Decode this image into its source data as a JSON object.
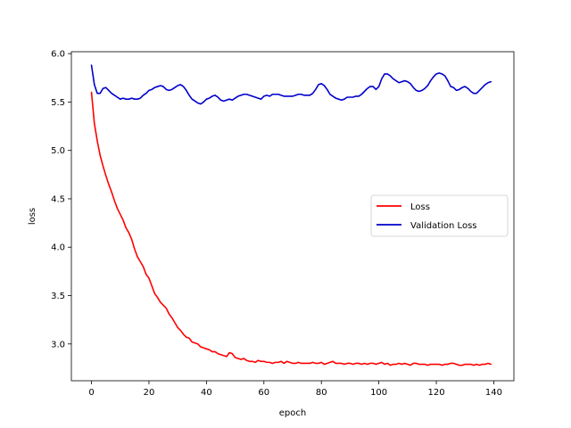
{
  "chart_data": {
    "type": "line",
    "title": "",
    "xlabel": "epoch",
    "ylabel": "loss",
    "xlim": [
      -7,
      147
    ],
    "ylim": [
      2.62,
      6.02
    ],
    "xticks": [
      0,
      20,
      40,
      60,
      80,
      100,
      120,
      140
    ],
    "yticks": [
      3.0,
      3.5,
      4.0,
      4.5,
      5.0,
      5.5,
      6.0
    ],
    "grid": false,
    "legend_position": "center-right",
    "series": [
      {
        "name": "Loss",
        "color": "#ff0000",
        "x": [
          0,
          1,
          2,
          3,
          4,
          5,
          6,
          7,
          8,
          9,
          10,
          11,
          12,
          13,
          14,
          15,
          16,
          17,
          18,
          19,
          20,
          21,
          22,
          23,
          24,
          25,
          26,
          27,
          28,
          29,
          30,
          31,
          32,
          33,
          34,
          35,
          36,
          37,
          38,
          39,
          40,
          41,
          42,
          43,
          44,
          45,
          46,
          47,
          48,
          49,
          50,
          51,
          52,
          53,
          54,
          55,
          56,
          57,
          58,
          59,
          60,
          61,
          62,
          63,
          64,
          65,
          66,
          67,
          68,
          69,
          70,
          71,
          72,
          73,
          74,
          75,
          76,
          77,
          78,
          79,
          80,
          81,
          82,
          83,
          84,
          85,
          86,
          87,
          88,
          89,
          90,
          91,
          92,
          93,
          94,
          95,
          96,
          97,
          98,
          99,
          100,
          101,
          102,
          103,
          104,
          105,
          106,
          107,
          108,
          109,
          110,
          111,
          112,
          113,
          114,
          115,
          116,
          117,
          118,
          119,
          120,
          121,
          122,
          123,
          124,
          125,
          126,
          127,
          128,
          129,
          130,
          131,
          132,
          133,
          134,
          135,
          136,
          137,
          138,
          139
        ],
        "values": [
          5.6,
          5.28,
          5.1,
          4.95,
          4.84,
          4.74,
          4.65,
          4.57,
          4.48,
          4.4,
          4.34,
          4.28,
          4.2,
          4.15,
          4.08,
          3.98,
          3.9,
          3.85,
          3.8,
          3.72,
          3.68,
          3.6,
          3.52,
          3.48,
          3.43,
          3.4,
          3.37,
          3.31,
          3.27,
          3.22,
          3.17,
          3.14,
          3.1,
          3.07,
          3.06,
          3.02,
          3.01,
          3.0,
          2.97,
          2.96,
          2.95,
          2.94,
          2.92,
          2.92,
          2.9,
          2.89,
          2.88,
          2.87,
          2.91,
          2.9,
          2.86,
          2.85,
          2.84,
          2.85,
          2.83,
          2.82,
          2.82,
          2.81,
          2.83,
          2.82,
          2.82,
          2.81,
          2.81,
          2.8,
          2.81,
          2.81,
          2.82,
          2.8,
          2.82,
          2.81,
          2.8,
          2.8,
          2.81,
          2.8,
          2.8,
          2.8,
          2.8,
          2.81,
          2.8,
          2.8,
          2.81,
          2.79,
          2.8,
          2.81,
          2.82,
          2.8,
          2.8,
          2.8,
          2.79,
          2.8,
          2.8,
          2.79,
          2.8,
          2.8,
          2.79,
          2.8,
          2.79,
          2.8,
          2.8,
          2.79,
          2.8,
          2.81,
          2.79,
          2.8,
          2.78,
          2.79,
          2.79,
          2.8,
          2.79,
          2.8,
          2.79,
          2.78,
          2.8,
          2.8,
          2.79,
          2.79,
          2.79,
          2.78,
          2.79,
          2.79,
          2.79,
          2.79,
          2.78,
          2.79,
          2.79,
          2.8,
          2.8,
          2.79,
          2.78,
          2.78,
          2.79,
          2.79,
          2.79,
          2.78,
          2.79,
          2.78,
          2.79,
          2.79,
          2.8,
          2.79
        ]
      },
      {
        "name": "Validation Loss",
        "color": "#0000cc",
        "x": [
          0,
          1,
          2,
          3,
          4,
          5,
          6,
          7,
          8,
          9,
          10,
          11,
          12,
          13,
          14,
          15,
          16,
          17,
          18,
          19,
          20,
          21,
          22,
          23,
          24,
          25,
          26,
          27,
          28,
          29,
          30,
          31,
          32,
          33,
          34,
          35,
          36,
          37,
          38,
          39,
          40,
          41,
          42,
          43,
          44,
          45,
          46,
          47,
          48,
          49,
          50,
          51,
          52,
          53,
          54,
          55,
          56,
          57,
          58,
          59,
          60,
          61,
          62,
          63,
          64,
          65,
          66,
          67,
          68,
          69,
          70,
          71,
          72,
          73,
          74,
          75,
          76,
          77,
          78,
          79,
          80,
          81,
          82,
          83,
          84,
          85,
          86,
          87,
          88,
          89,
          90,
          91,
          92,
          93,
          94,
          95,
          96,
          97,
          98,
          99,
          100,
          101,
          102,
          103,
          104,
          105,
          106,
          107,
          108,
          109,
          110,
          111,
          112,
          113,
          114,
          115,
          116,
          117,
          118,
          119,
          120,
          121,
          122,
          123,
          124,
          125,
          126,
          127,
          128,
          129,
          130,
          131,
          132,
          133,
          134,
          135,
          136,
          137,
          138,
          139
        ],
        "values": [
          5.88,
          5.68,
          5.59,
          5.59,
          5.64,
          5.65,
          5.62,
          5.59,
          5.57,
          5.55,
          5.53,
          5.54,
          5.53,
          5.53,
          5.54,
          5.53,
          5.53,
          5.54,
          5.57,
          5.59,
          5.62,
          5.63,
          5.65,
          5.66,
          5.67,
          5.66,
          5.63,
          5.62,
          5.63,
          5.65,
          5.67,
          5.68,
          5.66,
          5.62,
          5.57,
          5.53,
          5.51,
          5.49,
          5.48,
          5.5,
          5.53,
          5.54,
          5.56,
          5.57,
          5.55,
          5.52,
          5.51,
          5.52,
          5.53,
          5.52,
          5.54,
          5.56,
          5.57,
          5.58,
          5.58,
          5.57,
          5.56,
          5.55,
          5.54,
          5.53,
          5.56,
          5.57,
          5.56,
          5.58,
          5.58,
          5.58,
          5.57,
          5.56,
          5.56,
          5.56,
          5.56,
          5.57,
          5.58,
          5.58,
          5.57,
          5.57,
          5.57,
          5.59,
          5.63,
          5.68,
          5.69,
          5.67,
          5.63,
          5.58,
          5.56,
          5.54,
          5.53,
          5.52,
          5.53,
          5.55,
          5.55,
          5.55,
          5.56,
          5.56,
          5.58,
          5.61,
          5.64,
          5.66,
          5.66,
          5.63,
          5.66,
          5.74,
          5.79,
          5.79,
          5.77,
          5.74,
          5.72,
          5.7,
          5.71,
          5.72,
          5.71,
          5.69,
          5.65,
          5.62,
          5.61,
          5.62,
          5.64,
          5.67,
          5.72,
          5.76,
          5.79,
          5.8,
          5.79,
          5.77,
          5.72,
          5.66,
          5.65,
          5.62,
          5.63,
          5.65,
          5.66,
          5.64,
          5.61,
          5.59,
          5.59,
          5.62,
          5.65,
          5.68,
          5.7,
          5.71
        ]
      }
    ]
  }
}
